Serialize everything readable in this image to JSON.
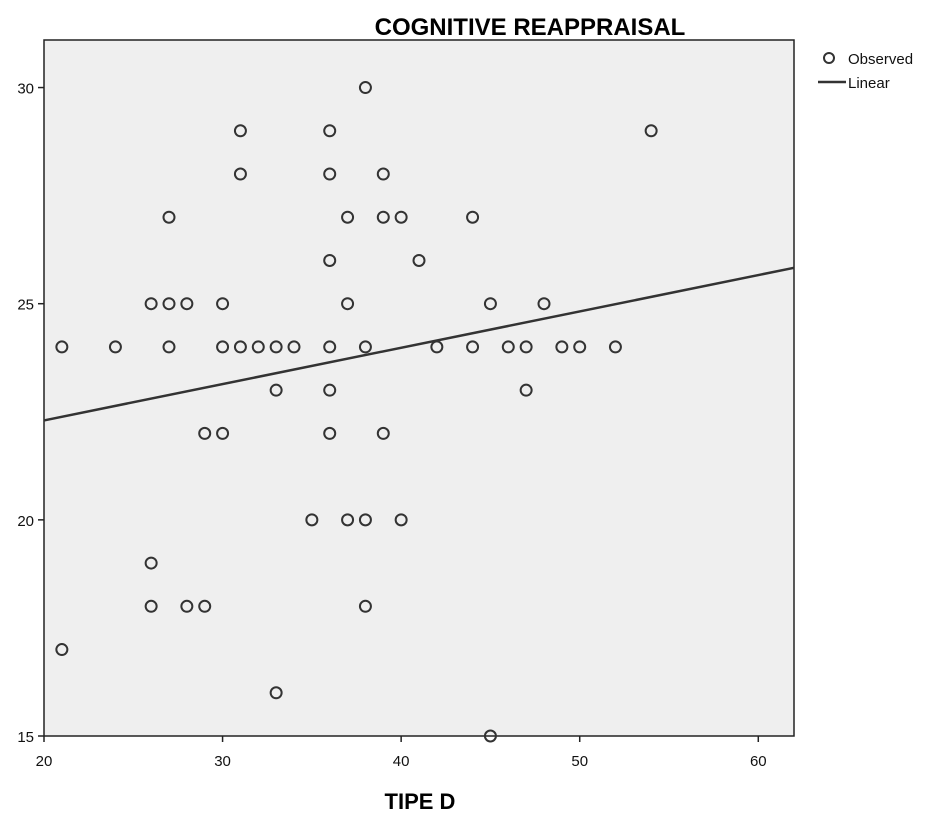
{
  "chart_data": {
    "type": "scatter",
    "title": "COGNITIVE REAPPRAISAL",
    "xlabel": "TIPE D",
    "ylabel": "",
    "xlim": [
      20,
      62
    ],
    "ylim": [
      15,
      31.1
    ],
    "xticks": [
      "20",
      "30",
      "40",
      "50",
      "60"
    ],
    "yticks": [
      "15",
      "20",
      "25",
      "30"
    ],
    "grid": false,
    "legend_position": "top-right",
    "legend": [
      "Observed",
      "Linear"
    ],
    "plot_background": "#efefef",
    "point_color": "#333333",
    "line_color": "#333333",
    "series": [
      {
        "name": "Observed",
        "points": [
          [
            21,
            24
          ],
          [
            21,
            17
          ],
          [
            24,
            24
          ],
          [
            26,
            25
          ],
          [
            26,
            19
          ],
          [
            26,
            18
          ],
          [
            27,
            27
          ],
          [
            27,
            25
          ],
          [
            27,
            24
          ],
          [
            28,
            25
          ],
          [
            28,
            18
          ],
          [
            29,
            22
          ],
          [
            29,
            18
          ],
          [
            30,
            25
          ],
          [
            30,
            24
          ],
          [
            30,
            22
          ],
          [
            31,
            29
          ],
          [
            31,
            28
          ],
          [
            31,
            24
          ],
          [
            32,
            24
          ],
          [
            33,
            24
          ],
          [
            33,
            23
          ],
          [
            33,
            16
          ],
          [
            34,
            24
          ],
          [
            35,
            20
          ],
          [
            36,
            29
          ],
          [
            36,
            28
          ],
          [
            36,
            26
          ],
          [
            36,
            24
          ],
          [
            36,
            23
          ],
          [
            36,
            22
          ],
          [
            37,
            27
          ],
          [
            37,
            25
          ],
          [
            37,
            20
          ],
          [
            38,
            30
          ],
          [
            38,
            24
          ],
          [
            38,
            20
          ],
          [
            38,
            18
          ],
          [
            39,
            28
          ],
          [
            39,
            27
          ],
          [
            39,
            22
          ],
          [
            40,
            27
          ],
          [
            40,
            20
          ],
          [
            41,
            26
          ],
          [
            42,
            24
          ],
          [
            44,
            27
          ],
          [
            44,
            24
          ],
          [
            45,
            25
          ],
          [
            45,
            15
          ],
          [
            46,
            24
          ],
          [
            47,
            24
          ],
          [
            47,
            23
          ],
          [
            48,
            25
          ],
          [
            49,
            24
          ],
          [
            50,
            24
          ],
          [
            52,
            24
          ],
          [
            54,
            29
          ]
        ]
      },
      {
        "name": "Linear",
        "line": [
          [
            20,
            22.3
          ],
          [
            62,
            25.83
          ]
        ]
      }
    ]
  }
}
